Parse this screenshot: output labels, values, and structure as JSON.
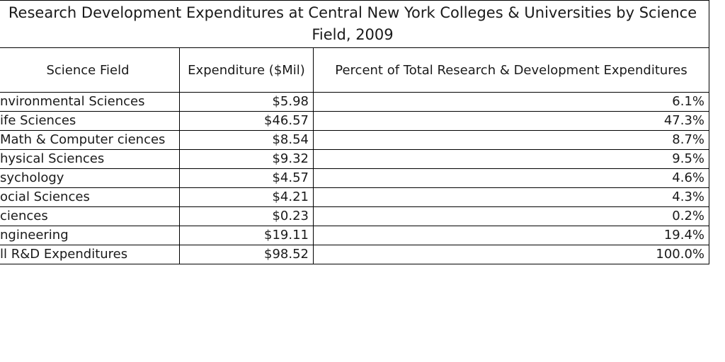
{
  "chart_data": {
    "type": "table",
    "title": "Research Development Expenditures at Central New York Colleges & Universities by Science Field, 2009",
    "columns": [
      "Science Field",
      "Expenditure ($Mil)",
      "Percent of Total Research & Development Expenditures"
    ],
    "rows": [
      {
        "field": "Environmental Sciences",
        "field_visible": "nvironmental Sciences",
        "expenditure": "$5.98",
        "percent": "6.1%"
      },
      {
        "field": "Life Sciences",
        "field_visible": "ife Sciences",
        "expenditure": "$46.57",
        "percent": "47.3%"
      },
      {
        "field": "Math & Computer Sciences",
        "field_visible": "Math & Computer ciences",
        "expenditure": "$8.54",
        "percent": "8.7%"
      },
      {
        "field": "Physical Sciences",
        "field_visible": "hysical Sciences",
        "expenditure": "$9.32",
        "percent": "9.5%"
      },
      {
        "field": "Psychology",
        "field_visible": "sychology",
        "expenditure": "$4.57",
        "percent": "4.6%"
      },
      {
        "field": "Social Sciences",
        "field_visible": "ocial Sciences",
        "expenditure": "$4.21",
        "percent": "4.3%"
      },
      {
        "field": "Sciences",
        "field_visible": "ciences",
        "expenditure": "$0.23",
        "percent": "0.2%"
      },
      {
        "field": "Engineering",
        "field_visible": "ngineering",
        "expenditure": "$19.11",
        "percent": "19.4%"
      },
      {
        "field": "All R&D Expenditures",
        "field_visible": "ll R&D Expenditures",
        "expenditure": "$98.52",
        "percent": "100.0%"
      }
    ]
  }
}
